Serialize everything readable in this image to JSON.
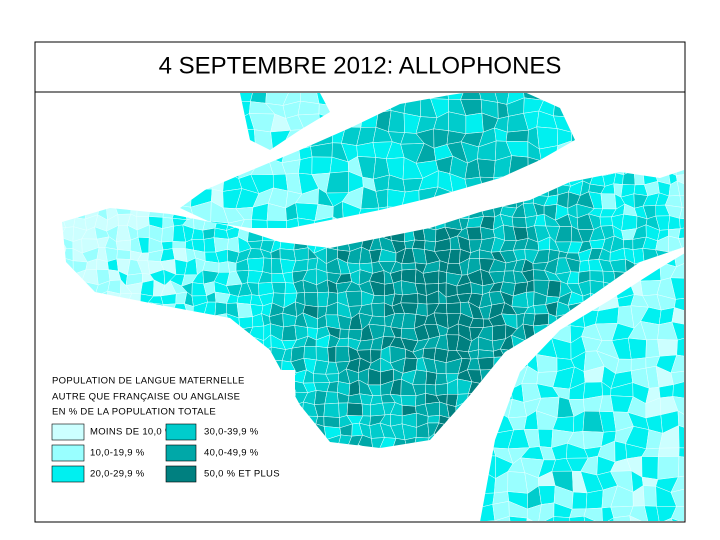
{
  "title": "4 SEPTEMBRE 2012: ALLOPHONES",
  "legend": {
    "heading": [
      "POPULATION DE LANGUE MATERNELLE",
      "AUTRE QUE FRANÇAISE OU ANGLAISE",
      "EN % DE LA POPULATION TOTALE"
    ],
    "items": [
      {
        "label": "MOINS DE 10,0 %",
        "color": "#ccffff"
      },
      {
        "label": "10,0-19,9 %",
        "color": "#99ffff"
      },
      {
        "label": "20,0-29,9 %",
        "color": "#00f0f0"
      },
      {
        "label": "30,0-39,9 %",
        "color": "#00cccc"
      },
      {
        "label": "40,0-49,9 %",
        "color": "#00a8a8"
      },
      {
        "label": "50,0 % ET PLUS",
        "color": "#008080"
      }
    ]
  }
}
